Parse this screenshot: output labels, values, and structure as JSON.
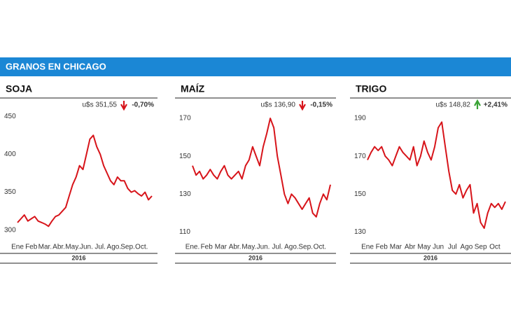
{
  "header": {
    "title": "GRANOS EN CHICAGO"
  },
  "chart_data": [
    {
      "type": "line",
      "title": "SOJA",
      "price": "u$s 351,55",
      "change": "-0,70%",
      "change_direction": "down",
      "year": "2016",
      "categories": [
        "Ene",
        null,
        null,
        null,
        "Feb",
        null,
        null,
        null,
        "Mar.",
        null,
        null,
        null,
        "Abr.",
        null,
        null,
        null,
        "May.",
        null,
        null,
        null,
        "Jun.",
        null,
        null,
        null,
        "Jul.",
        null,
        null,
        null,
        "Ago.",
        null,
        null,
        null,
        "Sep.",
        null,
        null,
        null,
        "Oct.",
        null,
        null,
        null
      ],
      "series": [
        {
          "name": "Soja",
          "color": "#d7141a",
          "values": [
            310,
            315,
            320,
            312,
            315,
            318,
            312,
            310,
            308,
            305,
            312,
            318,
            320,
            325,
            330,
            345,
            360,
            370,
            385,
            380,
            400,
            420,
            425,
            410,
            400,
            385,
            375,
            365,
            360,
            370,
            365,
            365,
            355,
            350,
            352,
            348,
            345,
            350,
            340,
            345
          ]
        }
      ],
      "ylim": [
        285,
        465
      ],
      "yticks": [
        300,
        350,
        400,
        450
      ]
    },
    {
      "type": "line",
      "title": "MAÍZ",
      "price": "u$s 136,90",
      "change": "-0,15%",
      "change_direction": "down",
      "year": "2016",
      "categories": [
        "Ene.",
        null,
        null,
        null,
        "Feb",
        null,
        null,
        null,
        "Mar",
        null,
        null,
        null,
        "Abr.",
        null,
        null,
        null,
        "May.",
        null,
        null,
        null,
        "Jun.",
        null,
        null,
        null,
        "Jul.",
        null,
        null,
        null,
        "Ago.",
        null,
        null,
        null,
        "Sep.",
        null,
        null,
        null,
        "Oct.",
        null,
        null,
        null
      ],
      "series": [
        {
          "name": "Maíz",
          "color": "#d7141a",
          "values": [
            145,
            140,
            142,
            138,
            140,
            143,
            140,
            138,
            142,
            145,
            140,
            138,
            140,
            142,
            138,
            145,
            148,
            155,
            150,
            145,
            155,
            162,
            170,
            165,
            150,
            140,
            130,
            125,
            130,
            128,
            125,
            122,
            125,
            128,
            120,
            118,
            125,
            130,
            127,
            135
          ]
        }
      ],
      "ylim": [
        105,
        177
      ],
      "yticks": [
        110,
        130,
        150,
        170
      ]
    },
    {
      "type": "line",
      "title": "TRIGO",
      "price": "u$s 148,82",
      "change": "+2,41%",
      "change_direction": "up",
      "year": "2016",
      "categories": [
        "Ene",
        null,
        null,
        null,
        "Feb",
        null,
        null,
        null,
        "Mar",
        null,
        null,
        null,
        "Abr",
        null,
        null,
        null,
        "May",
        null,
        null,
        null,
        "Jun",
        null,
        null,
        null,
        "Jul",
        null,
        null,
        null,
        "Ago",
        null,
        null,
        null,
        "Sep",
        null,
        null,
        null,
        "Oct",
        null,
        null,
        null
      ],
      "series": [
        {
          "name": "Trigo",
          "color": "#d7141a",
          "values": [
            168,
            172,
            175,
            173,
            175,
            170,
            168,
            165,
            170,
            175,
            172,
            170,
            168,
            175,
            165,
            170,
            178,
            172,
            168,
            175,
            185,
            188,
            175,
            162,
            152,
            150,
            155,
            148,
            152,
            155,
            140,
            145,
            135,
            132,
            140,
            145,
            143,
            145,
            142,
            146
          ]
        }
      ],
      "ylim": [
        125,
        197
      ],
      "yticks": [
        130,
        150,
        170,
        190
      ]
    }
  ]
}
